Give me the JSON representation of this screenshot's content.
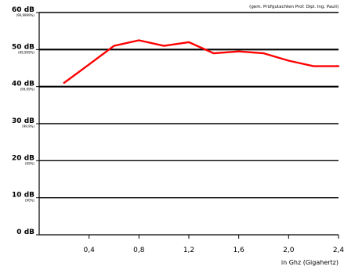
{
  "chart_data": {
    "type": "line",
    "note": "(gem. Prüfgutachten Prof. Dipl. Ing. Pauli)",
    "xlabel": "in Ghz (Gigahertz)",
    "xlim": [
      0,
      2.4
    ],
    "ylim": [
      0,
      60
    ],
    "x_ticks": [
      {
        "v": 0.4,
        "label": "0,4"
      },
      {
        "v": 0.8,
        "label": "0,8"
      },
      {
        "v": 1.2,
        "label": "1,2"
      },
      {
        "v": 1.6,
        "label": "1,6"
      },
      {
        "v": 2.0,
        "label": "2,0"
      },
      {
        "v": 2.4,
        "label": "2,4"
      }
    ],
    "y_ticks": [
      {
        "v": 60,
        "label": "60 dB",
        "sub": "(99,9999%)"
      },
      {
        "v": 50,
        "label": "50 dB",
        "sub": "(99,999%)"
      },
      {
        "v": 40,
        "label": "40 dB",
        "sub": "(99,99%)"
      },
      {
        "v": 30,
        "label": "30 dB",
        "sub": "(99,9%)"
      },
      {
        "v": 20,
        "label": "20 dB",
        "sub": "(99%)"
      },
      {
        "v": 10,
        "label": "10 dB",
        "sub": "(90%)"
      },
      {
        "v": 0,
        "label": "0 dB",
        "sub": ""
      }
    ],
    "grid": true,
    "series": [
      {
        "color": "#ff0000",
        "points": [
          [
            0.2,
            41
          ],
          [
            0.4,
            46
          ],
          [
            0.6,
            51
          ],
          [
            0.8,
            52.5
          ],
          [
            1.0,
            51
          ],
          [
            1.2,
            52
          ],
          [
            1.4,
            49
          ],
          [
            1.6,
            49.5
          ],
          [
            1.8,
            49
          ],
          [
            2.0,
            47
          ],
          [
            2.2,
            45.5
          ],
          [
            2.4,
            45.5
          ]
        ]
      }
    ]
  }
}
